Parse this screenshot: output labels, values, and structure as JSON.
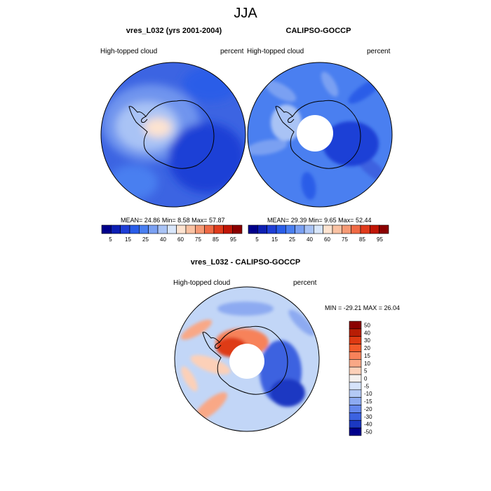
{
  "season": "JJA",
  "panels": [
    {
      "title": "vres_L032 (yrs 2001-2004)",
      "left_label": "High-topped cloud",
      "right_label": "percent",
      "stats": {
        "mean_label": "MEAN=",
        "mean": "24.86",
        "min_label": "Min=",
        "min": "8.58",
        "max_label": "Max=",
        "max": "57.87"
      },
      "colorbar_ticks": [
        "5",
        "15",
        "25",
        "40",
        "60",
        "75",
        "85",
        "95"
      ]
    },
    {
      "title": "CALIPSO-GOCCP",
      "left_label": "High-topped cloud",
      "right_label": "percent",
      "stats": {
        "mean_label": "MEAN=",
        "mean": "29.39",
        "min_label": "Min=",
        "min": "9.65",
        "max_label": "Max=",
        "max": "52.44"
      },
      "colorbar_ticks": [
        "5",
        "15",
        "25",
        "40",
        "60",
        "75",
        "85",
        "95"
      ]
    }
  ],
  "diff": {
    "title": "vres_L032 - CALIPSO-GOCCP",
    "left_label": "High-topped cloud",
    "right_label": "percent",
    "minmax": "MIN = -29.21  MAX =  26.04",
    "colorbar_ticks": [
      "50",
      "40",
      "30",
      "20",
      "15",
      "10",
      "5",
      "0",
      "-5",
      "-10",
      "-15",
      "-20",
      "-30",
      "-40",
      "-50"
    ]
  },
  "colors": {
    "seq_scale": [
      "#00008b",
      "#0d1fb3",
      "#1f3fd6",
      "#2a5de8",
      "#4a7ff0",
      "#7aa0f2",
      "#a9c3f5",
      "#d8e6fa",
      "#fde3d0",
      "#f9c2a3",
      "#f59a75",
      "#ef6a45",
      "#e03b1c",
      "#c01606",
      "#8b0000"
    ],
    "div_scale": [
      "#8b0000",
      "#b81d04",
      "#de3a12",
      "#f35a2a",
      "#f7825a",
      "#f9a886",
      "#fcd0b8",
      "#f4f0ee",
      "#d6e3fa",
      "#b3c9f5",
      "#8daaf1",
      "#6487ec",
      "#3c62e0",
      "#1b38c2",
      "#00008b"
    ],
    "land_line": "#000000"
  }
}
